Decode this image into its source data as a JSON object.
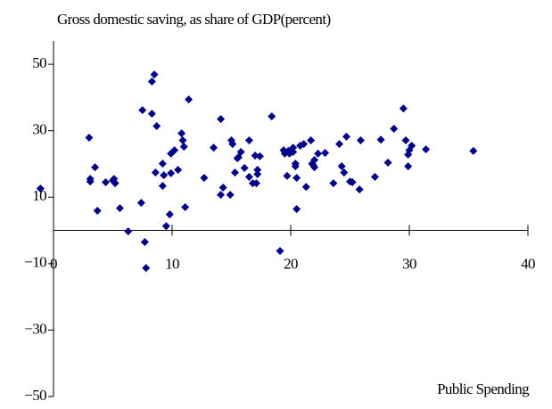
{
  "chart_data": {
    "type": "scatter",
    "title": "Gross domestic saving, as share of GDP(percent)",
    "x_label": "Public Spending",
    "color": "#00008b",
    "xlim": [
      0,
      40
    ],
    "xticks": [
      0,
      10,
      20,
      30,
      40
    ],
    "ylim": [
      -50,
      57
    ],
    "yticks": [
      50,
      30,
      10,
      {
        "value": -10,
        "label": "−10"
      },
      {
        "value": -30,
        "label": "−30"
      },
      {
        "value": -50,
        "label": "−50"
      }
    ],
    "x": [
      -1.1,
      3.0,
      3.1,
      3.1,
      3.5,
      3.7,
      4.4,
      5.0,
      5.2,
      5.1,
      5.6,
      6.3,
      7.4,
      7.5,
      7.7,
      7.8,
      8.3,
      8.3,
      8.5,
      8.6,
      8.7,
      9.2,
      9.2,
      9.3,
      9.5,
      9.8,
      9.9,
      9.9,
      10.2,
      10.5,
      10.8,
      10.9,
      11.0,
      11.1,
      11.4,
      12.7,
      13.5,
      14.1,
      14.1,
      14.3,
      14.9,
      15.0,
      15.1,
      15.3,
      15.5,
      15.6,
      15.8,
      16.1,
      16.5,
      16.5,
      16.8,
      17.0,
      17.1,
      17.2,
      17.2,
      17.4,
      18.4,
      19.1,
      19.4,
      19.5,
      19.7,
      19.8,
      19.9,
      20.2,
      20.2,
      20.4,
      20.4,
      20.5,
      20.5,
      20.8,
      21.1,
      21.3,
      21.7,
      21.8,
      21.9,
      22.0,
      22.0,
      22.3,
      22.9,
      23.6,
      24.1,
      24.3,
      24.5,
      24.7,
      25.0,
      25.2,
      25.8,
      25.9,
      27.1,
      27.6,
      28.2,
      28.7,
      29.5,
      29.7,
      29.9,
      30.0,
      29.9,
      30.2,
      31.4,
      35.4
    ],
    "values": [
      12.6,
      27.9,
      14.7,
      15.5,
      19.0,
      5.9,
      14.5,
      15.0,
      14.2,
      15.5,
      6.7,
      -0.3,
      8.3,
      36.2,
      -3.5,
      -11.3,
      35.1,
      44.8,
      46.9,
      17.4,
      31.4,
      13.4,
      20.1,
      16.6,
      1.3,
      4.8,
      17.2,
      23.1,
      24.1,
      18.2,
      29.2,
      27.1,
      25.2,
      7.0,
      39.4,
      15.8,
      24.9,
      33.5,
      10.7,
      12.9,
      10.7,
      27.1,
      26.0,
      17.4,
      21.7,
      22.0,
      23.6,
      18.8,
      27.1,
      16.1,
      14.2,
      22.5,
      14.2,
      18.2,
      16.9,
      22.3,
      34.3,
      -6.2,
      24.1,
      23.1,
      16.4,
      23.9,
      23.1,
      24.9,
      23.6,
      20.1,
      19.3,
      15.8,
      6.4,
      25.5,
      26.0,
      13.1,
      27.1,
      20.1,
      19.6,
      21.2,
      19.0,
      23.1,
      23.3,
      14.2,
      26.0,
      19.3,
      17.4,
      28.2,
      14.7,
      14.5,
      12.3,
      27.1,
      16.1,
      27.3,
      20.4,
      30.6,
      36.7,
      27.1,
      22.8,
      24.1,
      19.3,
      25.5,
      24.4,
      23.9
    ]
  }
}
